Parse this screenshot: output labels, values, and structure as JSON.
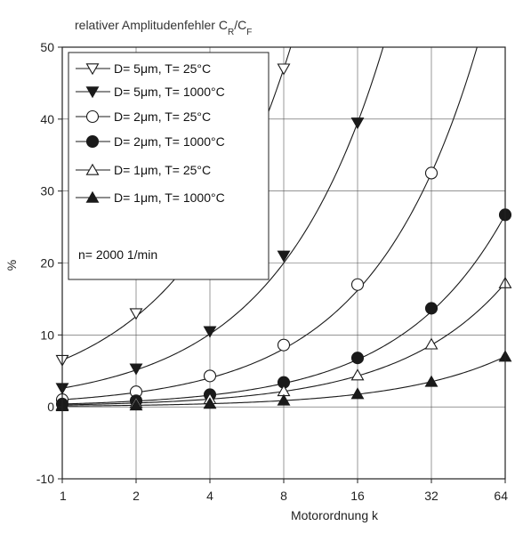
{
  "chart_data": {
    "type": "line",
    "title_main": "relativer Amplitudenfehler C",
    "title_sub1": "R",
    "title_slash": "/C",
    "title_sub2": "F",
    "xlabel": "Motorordnung k",
    "ylabel": "%",
    "x_scale": "log2",
    "x": [
      1,
      2,
      4,
      8,
      16,
      32,
      64
    ],
    "x_tick_labels": [
      "1",
      "2",
      "4",
      "8",
      "16",
      "32",
      "64"
    ],
    "ylim": [
      -10,
      50
    ],
    "y_ticks": [
      -10,
      0,
      10,
      20,
      30,
      40,
      50
    ],
    "y_tick_labels": [
      "-10",
      "0",
      "10",
      "20",
      "30",
      "40",
      "50"
    ],
    "grid": true,
    "legend_position": "top-left",
    "annotation": "n= 2000 1/min",
    "series": [
      {
        "name": "D= 5μm, T= 25°C",
        "marker": "triangle-down-open",
        "values": [
          6.5,
          13.0,
          25.0,
          47.0,
          null,
          null,
          null
        ]
      },
      {
        "name": "D= 5μm, T= 1000°C",
        "marker": "triangle-down-filled",
        "values": [
          2.6,
          5.3,
          10.5,
          21.0,
          39.5,
          null,
          null
        ]
      },
      {
        "name": "D= 2μm, T= 25°C",
        "marker": "circle-open",
        "values": [
          1.0,
          2.1,
          4.3,
          8.6,
          17.0,
          32.5,
          null
        ]
      },
      {
        "name": "D= 2μm, T= 1000°C",
        "marker": "circle-filled",
        "values": [
          0.4,
          0.85,
          1.7,
          3.4,
          6.8,
          13.7,
          26.7
        ]
      },
      {
        "name": "D= 1μm, T= 25°C",
        "marker": "triangle-up-open",
        "values": [
          0.27,
          0.55,
          1.1,
          2.2,
          4.4,
          8.7,
          17.2
        ]
      },
      {
        "name": "D= 1μm, T= 1000°C",
        "marker": "triangle-up-filled",
        "values": [
          0.11,
          0.22,
          0.45,
          0.9,
          1.8,
          3.5,
          7.0
        ]
      }
    ]
  }
}
